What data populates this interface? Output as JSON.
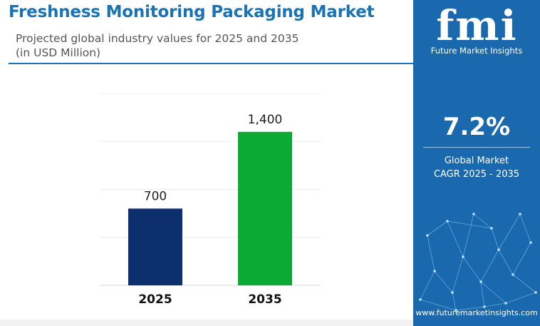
{
  "header": {
    "title": "Freshness Monitoring Packaging Market",
    "subtitle_line1": "Projected global industry values for 2025 and 2035",
    "subtitle_line2": "(in USD Million)"
  },
  "chart_data": {
    "type": "bar",
    "categories": [
      "2025",
      "2035"
    ],
    "values": [
      700,
      1400
    ],
    "value_labels": [
      "700",
      "1,400"
    ],
    "bar_colors": [
      "#0d2f6e",
      "#0aaa35"
    ],
    "ylim": [
      0,
      1750
    ],
    "grid": true,
    "title": "",
    "xlabel": "",
    "ylabel": ""
  },
  "sidebar": {
    "logo_mark": "fmi",
    "logo_text": "Future Market Insights",
    "cagr_value": "7.2%",
    "cagr_label_line1": "Global Market",
    "cagr_label_line2": "CAGR 2025 - 2035",
    "website": "www.futuremarketinsights.com"
  },
  "colors": {
    "brand_blue": "#1a73b5",
    "sidebar_blue": "#1a68ae",
    "bar_2025": "#0d2f6e",
    "bar_2035": "#0aaa35"
  }
}
